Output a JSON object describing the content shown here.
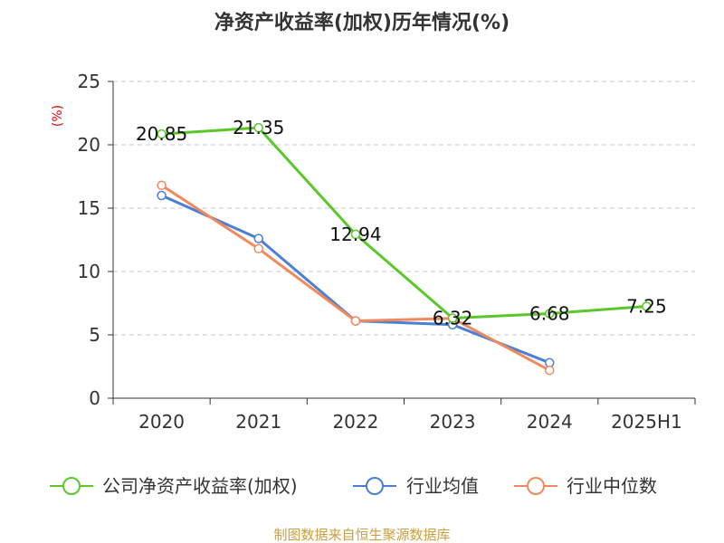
{
  "chart_data": {
    "type": "line",
    "title": "净资产收益率(加权)历年情况(%)",
    "unit_label": "(%)",
    "categories": [
      "2020",
      "2021",
      "2022",
      "2023",
      "2024",
      "2025H1"
    ],
    "ylim": [
      0,
      25
    ],
    "yticks": [
      0,
      5,
      10,
      15,
      20,
      25
    ],
    "grid": true,
    "legend_position": "bottom",
    "series": [
      {
        "name": "公司净资产收益率(加权)",
        "color": "#5bc72b",
        "values": [
          20.85,
          21.35,
          12.94,
          6.32,
          6.68,
          7.25
        ],
        "data_labels": [
          "20.85",
          "21.35",
          "12.94",
          "6.32",
          "6.68",
          "7.25"
        ]
      },
      {
        "name": "行业均值",
        "color": "#4a7fd6",
        "values": [
          16.0,
          12.6,
          6.1,
          5.8,
          2.8,
          null
        ]
      },
      {
        "name": "行业中位数",
        "color": "#f08a5d",
        "values": [
          16.8,
          11.8,
          6.1,
          6.3,
          2.2,
          null
        ]
      }
    ]
  },
  "footer": {
    "source": "制图数据来自恒生聚源数据库"
  }
}
